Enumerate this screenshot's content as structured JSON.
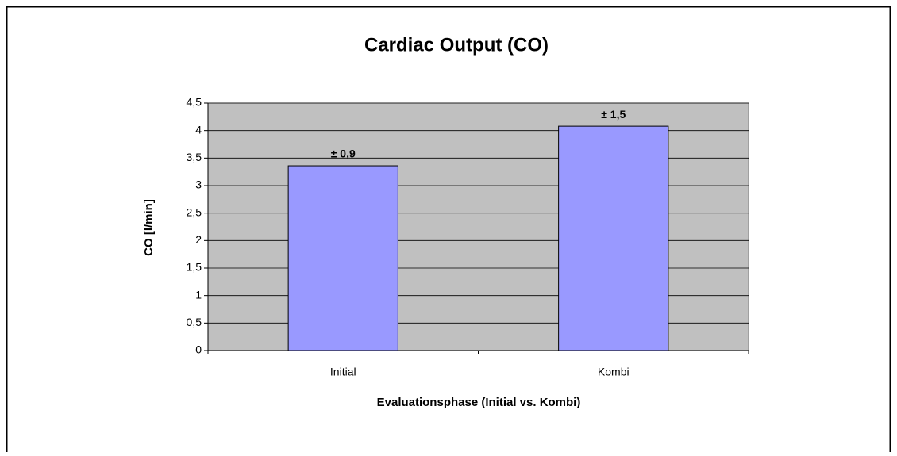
{
  "chart_data": {
    "type": "bar",
    "title": "Cardiac Output (CO)",
    "x_label": "Evaluationsphase (Initial vs. Kombi)",
    "y_label": "CO [l/min]",
    "categories": [
      "Initial",
      "Kombi"
    ],
    "values": [
      3.36,
      4.08
    ],
    "annotations": [
      "± 0,9",
      "± 1,5"
    ],
    "color": "#9999ff",
    "ylim": [
      0,
      4.5
    ],
    "yticks": [
      0,
      {
        "value": 0.5,
        "label": "0,5"
      },
      1,
      {
        "value": 1.5,
        "label": "1,5"
      },
      2,
      {
        "value": 2.5,
        "label": "2,5"
      },
      3,
      {
        "value": 3.5,
        "label": "3,5"
      },
      4,
      {
        "value": 4.5,
        "label": "4,5"
      }
    ],
    "grid": true
  }
}
